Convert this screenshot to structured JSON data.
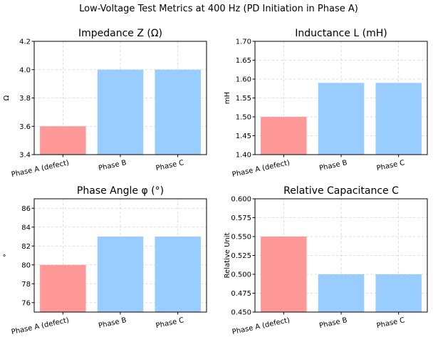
{
  "figure": {
    "title": "Low-Voltage Test Metrics at 400 Hz (PD Initiation in Phase A)"
  },
  "colors": {
    "defect": "#ff9999",
    "normal": "#99ccff"
  },
  "chart_data": [
    {
      "type": "bar",
      "title": "Impedance Z (Ω)",
      "xlabel": "",
      "ylabel": "Ω",
      "categories": [
        "Phase A (defect)",
        "Phase B",
        "Phase C"
      ],
      "values": [
        3.6,
        4.0,
        4.0
      ],
      "bar_colors": [
        "#ff9999",
        "#99ccff",
        "#99ccff"
      ],
      "ylim": [
        3.4,
        4.2
      ],
      "yticks": [
        3.4,
        3.6,
        3.8,
        4.0,
        4.2
      ],
      "ytick_labels": [
        "3.4",
        "3.6",
        "3.8",
        "4.0",
        "4.2"
      ],
      "grid": true
    },
    {
      "type": "bar",
      "title": "Inductance L (mH)",
      "xlabel": "",
      "ylabel": "mH",
      "categories": [
        "Phase A (defect)",
        "Phase B",
        "Phase C"
      ],
      "values": [
        1.5,
        1.59,
        1.59
      ],
      "bar_colors": [
        "#ff9999",
        "#99ccff",
        "#99ccff"
      ],
      "ylim": [
        1.4,
        1.7
      ],
      "yticks": [
        1.4,
        1.45,
        1.5,
        1.55,
        1.6,
        1.65,
        1.7
      ],
      "ytick_labels": [
        "1.40",
        "1.45",
        "1.50",
        "1.55",
        "1.60",
        "1.65",
        "1.70"
      ],
      "grid": true
    },
    {
      "type": "bar",
      "title": "Phase Angle φ (°)",
      "xlabel": "",
      "ylabel": "°",
      "categories": [
        "Phase A (defect)",
        "Phase B",
        "Phase C"
      ],
      "values": [
        80,
        83,
        83
      ],
      "bar_colors": [
        "#ff9999",
        "#99ccff",
        "#99ccff"
      ],
      "ylim": [
        75,
        87
      ],
      "yticks": [
        76,
        78,
        80,
        82,
        84,
        86
      ],
      "ytick_labels": [
        "76",
        "78",
        "80",
        "82",
        "84",
        "86"
      ],
      "grid": true
    },
    {
      "type": "bar",
      "title": "Relative Capacitance C",
      "xlabel": "",
      "ylabel": "Relative Unit",
      "categories": [
        "Phase A (defect)",
        "Phase B",
        "Phase C"
      ],
      "values": [
        0.55,
        0.5,
        0.5
      ],
      "bar_colors": [
        "#ff9999",
        "#99ccff",
        "#99ccff"
      ],
      "ylim": [
        0.45,
        0.6
      ],
      "yticks": [
        0.45,
        0.475,
        0.5,
        0.525,
        0.55,
        0.575,
        0.6
      ],
      "ytick_labels": [
        "0.450",
        "0.475",
        "0.500",
        "0.525",
        "0.550",
        "0.575",
        "0.600"
      ],
      "grid": true
    }
  ]
}
